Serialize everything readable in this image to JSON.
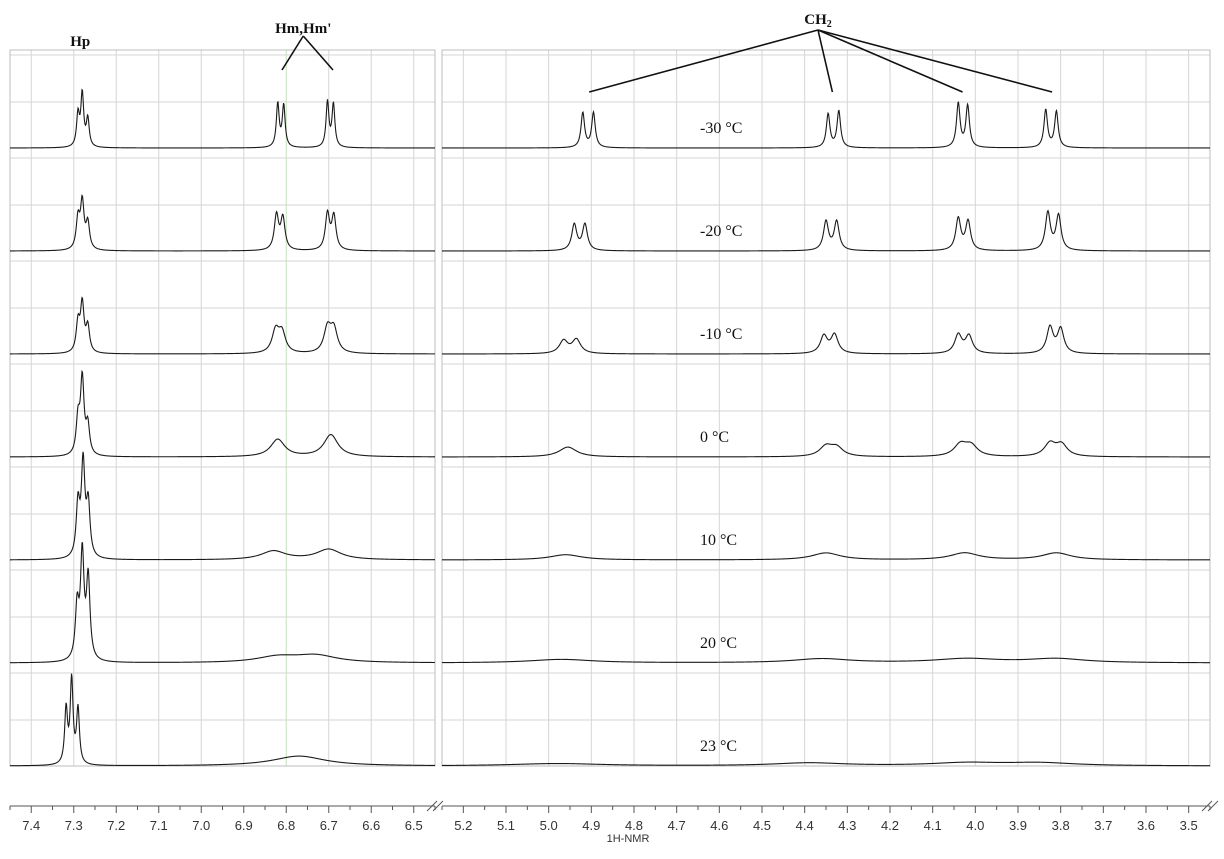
{
  "chart_data": {
    "type": "line",
    "title": "",
    "xlabel": "1H-NMR",
    "ylabel": "",
    "axis_direction": "descending",
    "axis_break": true,
    "grid": true,
    "x_axis_segments": [
      {
        "xlim": [
          7.45,
          6.45
        ],
        "ticks": [
          "7.4",
          "7.3",
          "7.2",
          "7.1",
          "7.0",
          "6.9",
          "6.8",
          "6.7",
          "6.6",
          "6.5"
        ]
      },
      {
        "xlim": [
          5.25,
          3.45
        ],
        "ticks": [
          "5.2",
          "5.1",
          "5.0",
          "4.9",
          "4.8",
          "4.7",
          "4.6",
          "4.5",
          "4.4",
          "4.3",
          "4.2",
          "4.1",
          "4.0",
          "3.9",
          "3.8",
          "3.7",
          "3.6",
          "3.5"
        ]
      }
    ],
    "series": [
      {
        "name": "-30 °C",
        "peaks": [
          {
            "ppm": 7.29,
            "h": 0.55,
            "w": 0.004
          },
          {
            "ppm": 7.28,
            "h": 0.9,
            "w": 0.004
          },
          {
            "ppm": 7.267,
            "h": 0.48,
            "w": 0.004
          },
          {
            "ppm": 6.82,
            "h": 0.75,
            "w": 0.004
          },
          {
            "ppm": 6.806,
            "h": 0.72,
            "w": 0.004
          },
          {
            "ppm": 6.703,
            "h": 0.78,
            "w": 0.004
          },
          {
            "ppm": 6.689,
            "h": 0.74,
            "w": 0.004
          },
          {
            "ppm": 4.92,
            "h": 0.6,
            "w": 0.005
          },
          {
            "ppm": 4.895,
            "h": 0.6,
            "w": 0.005
          },
          {
            "ppm": 4.345,
            "h": 0.58,
            "w": 0.005
          },
          {
            "ppm": 4.32,
            "h": 0.63,
            "w": 0.005
          },
          {
            "ppm": 4.04,
            "h": 0.76,
            "w": 0.005
          },
          {
            "ppm": 4.018,
            "h": 0.72,
            "w": 0.005
          },
          {
            "ppm": 3.835,
            "h": 0.65,
            "w": 0.005
          },
          {
            "ppm": 3.81,
            "h": 0.62,
            "w": 0.005
          }
        ]
      },
      {
        "name": "-20 °C",
        "peaks": [
          {
            "ppm": 7.29,
            "h": 0.52,
            "w": 0.005
          },
          {
            "ppm": 7.28,
            "h": 0.8,
            "w": 0.005
          },
          {
            "ppm": 7.267,
            "h": 0.45,
            "w": 0.005
          },
          {
            "ppm": 6.823,
            "h": 0.6,
            "w": 0.006
          },
          {
            "ppm": 6.808,
            "h": 0.55,
            "w": 0.006
          },
          {
            "ppm": 6.703,
            "h": 0.62,
            "w": 0.006
          },
          {
            "ppm": 6.688,
            "h": 0.58,
            "w": 0.006
          },
          {
            "ppm": 4.94,
            "h": 0.45,
            "w": 0.007
          },
          {
            "ppm": 4.915,
            "h": 0.45,
            "w": 0.007
          },
          {
            "ppm": 4.35,
            "h": 0.5,
            "w": 0.007
          },
          {
            "ppm": 4.325,
            "h": 0.5,
            "w": 0.007
          },
          {
            "ppm": 4.04,
            "h": 0.55,
            "w": 0.007
          },
          {
            "ppm": 4.017,
            "h": 0.5,
            "w": 0.007
          },
          {
            "ppm": 3.83,
            "h": 0.65,
            "w": 0.007
          },
          {
            "ppm": 3.805,
            "h": 0.6,
            "w": 0.007
          }
        ]
      },
      {
        "name": "-10 °C",
        "peaks": [
          {
            "ppm": 7.29,
            "h": 0.5,
            "w": 0.005
          },
          {
            "ppm": 7.28,
            "h": 0.82,
            "w": 0.005
          },
          {
            "ppm": 7.267,
            "h": 0.44,
            "w": 0.005
          },
          {
            "ppm": 6.825,
            "h": 0.38,
            "w": 0.01
          },
          {
            "ppm": 6.81,
            "h": 0.34,
            "w": 0.01
          },
          {
            "ppm": 6.703,
            "h": 0.42,
            "w": 0.01
          },
          {
            "ppm": 6.688,
            "h": 0.4,
            "w": 0.01
          },
          {
            "ppm": 4.965,
            "h": 0.22,
            "w": 0.012
          },
          {
            "ppm": 4.935,
            "h": 0.24,
            "w": 0.012
          },
          {
            "ppm": 4.355,
            "h": 0.3,
            "w": 0.01
          },
          {
            "ppm": 4.33,
            "h": 0.32,
            "w": 0.01
          },
          {
            "ppm": 4.04,
            "h": 0.32,
            "w": 0.01
          },
          {
            "ppm": 4.015,
            "h": 0.3,
            "w": 0.01
          },
          {
            "ppm": 3.825,
            "h": 0.45,
            "w": 0.009
          },
          {
            "ppm": 3.8,
            "h": 0.42,
            "w": 0.009
          }
        ]
      },
      {
        "name": "0 °C",
        "peaks": [
          {
            "ppm": 7.29,
            "h": 0.6,
            "w": 0.005
          },
          {
            "ppm": 7.28,
            "h": 1.3,
            "w": 0.005
          },
          {
            "ppm": 7.267,
            "h": 0.5,
            "w": 0.005
          },
          {
            "ppm": 6.82,
            "h": 0.3,
            "w": 0.02
          },
          {
            "ppm": 6.695,
            "h": 0.38,
            "w": 0.02
          },
          {
            "ppm": 4.955,
            "h": 0.17,
            "w": 0.025
          },
          {
            "ppm": 4.35,
            "h": 0.17,
            "w": 0.018
          },
          {
            "ppm": 4.325,
            "h": 0.15,
            "w": 0.018
          },
          {
            "ppm": 4.035,
            "h": 0.2,
            "w": 0.018
          },
          {
            "ppm": 4.01,
            "h": 0.18,
            "w": 0.018
          },
          {
            "ppm": 3.825,
            "h": 0.22,
            "w": 0.016
          },
          {
            "ppm": 3.798,
            "h": 0.2,
            "w": 0.016
          }
        ]
      },
      {
        "name": "10 °C",
        "peaks": [
          {
            "ppm": 7.29,
            "h": 0.9,
            "w": 0.005
          },
          {
            "ppm": 7.278,
            "h": 1.6,
            "w": 0.005
          },
          {
            "ppm": 7.266,
            "h": 0.9,
            "w": 0.005
          },
          {
            "ppm": 6.83,
            "h": 0.15,
            "w": 0.035
          },
          {
            "ppm": 6.7,
            "h": 0.18,
            "w": 0.035
          },
          {
            "ppm": 4.96,
            "h": 0.09,
            "w": 0.045
          },
          {
            "ppm": 4.35,
            "h": 0.12,
            "w": 0.04
          },
          {
            "ppm": 4.025,
            "h": 0.12,
            "w": 0.04
          },
          {
            "ppm": 3.81,
            "h": 0.12,
            "w": 0.04
          }
        ]
      },
      {
        "name": "20 °C",
        "peaks": [
          {
            "ppm": 7.292,
            "h": 0.9,
            "w": 0.005
          },
          {
            "ppm": 7.28,
            "h": 1.8,
            "w": 0.005
          },
          {
            "ppm": 7.266,
            "h": 1.4,
            "w": 0.005
          },
          {
            "ppm": 6.82,
            "h": 0.1,
            "w": 0.06
          },
          {
            "ppm": 6.73,
            "h": 0.12,
            "w": 0.06
          },
          {
            "ppm": 4.97,
            "h": 0.06,
            "w": 0.09
          },
          {
            "ppm": 4.36,
            "h": 0.07,
            "w": 0.08
          },
          {
            "ppm": 4.02,
            "h": 0.07,
            "w": 0.09
          },
          {
            "ppm": 3.81,
            "h": 0.07,
            "w": 0.08
          }
        ]
      },
      {
        "name": "23 °C",
        "peaks": [
          {
            "ppm": 7.318,
            "h": 0.95,
            "w": 0.004
          },
          {
            "ppm": 7.305,
            "h": 1.45,
            "w": 0.004
          },
          {
            "ppm": 7.29,
            "h": 0.95,
            "w": 0.004
          },
          {
            "ppm": 6.77,
            "h": 0.17,
            "w": 0.075
          },
          {
            "ppm": 4.98,
            "h": 0.04,
            "w": 0.13
          },
          {
            "ppm": 4.39,
            "h": 0.05,
            "w": 0.1
          },
          {
            "ppm": 4.02,
            "h": 0.05,
            "w": 0.1
          },
          {
            "ppm": 3.85,
            "h": 0.05,
            "w": 0.1
          }
        ]
      }
    ],
    "annotations": [
      {
        "label": "Hp",
        "ppm": 7.28
      },
      {
        "label": "Hm,Hm'",
        "ppm": 6.76,
        "targets": [
          6.81,
          6.69
        ]
      },
      {
        "label": "CH",
        "subscript": "2",
        "targets": [
          4.905,
          4.335,
          4.03,
          3.82
        ]
      }
    ]
  }
}
